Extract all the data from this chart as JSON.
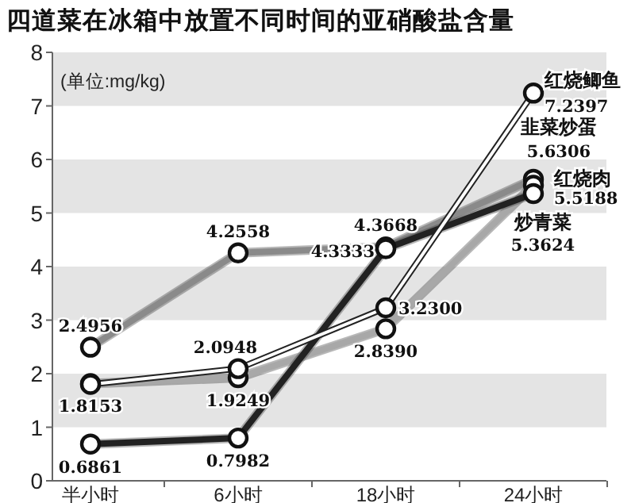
{
  "chart_data": {
    "type": "line",
    "title": "四道菜在冰箱中放置不同时间的亚硝酸盐含量",
    "annotations": [
      "(单位:mg/kg)"
    ],
    "categories": [
      "半小时",
      "6小时",
      "18小时",
      "24小时"
    ],
    "ylim": [
      0,
      8
    ],
    "yticks": [
      0,
      1,
      2,
      3,
      4,
      5,
      6,
      7,
      8
    ],
    "marker": "circle",
    "bands": [
      {
        "axis": "y",
        "from": 1,
        "to": 2,
        "color": "#e4e4e4"
      },
      {
        "axis": "y",
        "from": 3,
        "to": 4,
        "color": "#e4e4e4"
      },
      {
        "axis": "y",
        "from": 5,
        "to": 6,
        "color": "#e4e4e4"
      },
      {
        "axis": "y",
        "from": 7,
        "to": 8,
        "color": "#e4e4e4"
      }
    ],
    "series": [
      {
        "name": "韭菜炒蛋",
        "color": "#8a8a8a",
        "values": [
          2.4956,
          4.2558,
          4.3668,
          5.6306
        ],
        "value_labels": [
          "2.4956",
          "4.2558",
          "4.3668",
          "5.6306"
        ]
      },
      {
        "name": "红烧肉",
        "color": "#a8a8a8",
        "values": [
          1.8153,
          1.9249,
          2.839,
          5.5188
        ],
        "value_labels": [
          "1.8153",
          "1.9249",
          "2.8390",
          "5.5188"
        ]
      },
      {
        "name": "炒青菜",
        "color": "#222222",
        "values": [
          0.6861,
          0.7982,
          4.3333,
          5.3624
        ],
        "value_labels": [
          "0.6861",
          "0.7982",
          "4.3333",
          "5.3624"
        ]
      },
      {
        "name": "红烧鲫鱼",
        "color": "#ffffff",
        "values": [
          1.8,
          2.0948,
          3.23,
          7.2397
        ],
        "value_labels": [
          null,
          "2.0948",
          "3.2300",
          "7.2397"
        ]
      }
    ]
  }
}
